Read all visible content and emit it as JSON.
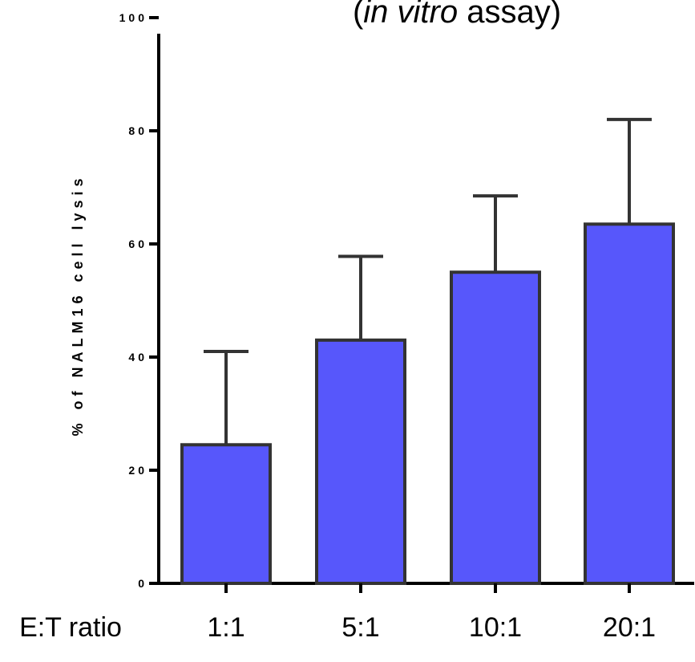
{
  "chart_data": {
    "type": "bar",
    "title": {
      "prefix": "(",
      "italic": "in vitro",
      "suffix": " assay)"
    },
    "xlabel": "E:T ratio",
    "ylabel": "% of NALM16 cell lysis",
    "ylim": [
      0,
      100
    ],
    "yticks": [
      0,
      20,
      40,
      60,
      80,
      100
    ],
    "categories": [
      "1:1",
      "5:1",
      "10:1",
      "20:1"
    ],
    "values": [
      24.5,
      43,
      55,
      63.5
    ],
    "errors": [
      16.5,
      14.8,
      13.5,
      18.5
    ],
    "bar_color": "#5757fb",
    "edge_color": "#333333"
  }
}
